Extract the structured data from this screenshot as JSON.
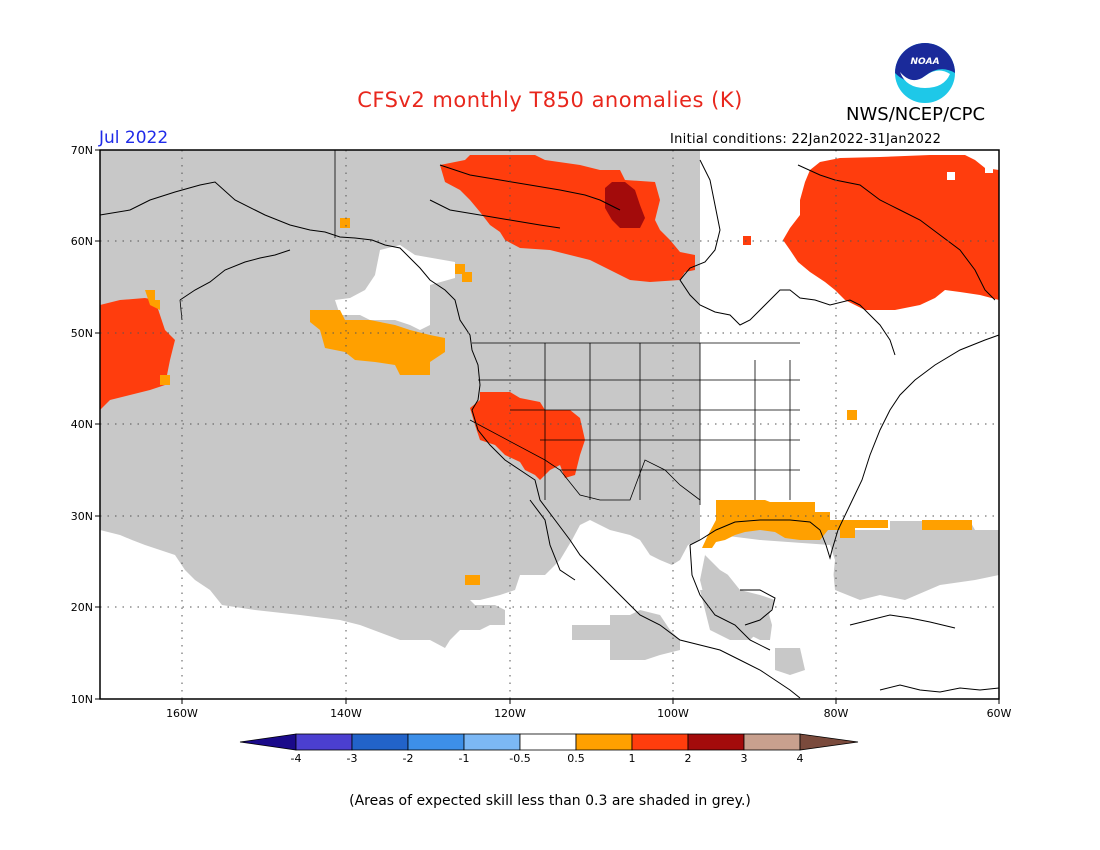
{
  "title": "CFSv2 monthly T850 anomalies (K)",
  "agency": "NWS/NCEP/CPC",
  "logo_text": "NOAA",
  "valid_month": "Jul 2022",
  "initial_conditions": "Initial conditions: 22Jan2022-31Jan2022",
  "footnote": "(Areas of expected skill less than 0.3 are shaded in grey.)",
  "lat_labels": [
    "70N",
    "60N",
    "50N",
    "40N",
    "30N",
    "20N",
    "10N"
  ],
  "lon_labels": [
    "160W",
    "140W",
    "120W",
    "100W",
    "80W",
    "60W"
  ],
  "colorbar": {
    "labels": [
      "-4",
      "-3",
      "-2",
      "-1",
      "-0.5",
      "0.5",
      "1",
      "2",
      "3",
      "4"
    ],
    "colors": [
      "#1a0a8a",
      "#4b3fd0",
      "#2263c9",
      "#3d8fe8",
      "#7cb8f5",
      "#ffffff",
      "#ffa000",
      "#ff3d0d",
      "#a30b0b",
      "#c8a08e",
      "#7a4a3c"
    ]
  },
  "colors": {
    "skill_grey": "#c8c8c8",
    "anom_05_1": "#ffa000",
    "anom_1_2": "#ff3d0d",
    "anom_2_3": "#a30b0b"
  }
}
